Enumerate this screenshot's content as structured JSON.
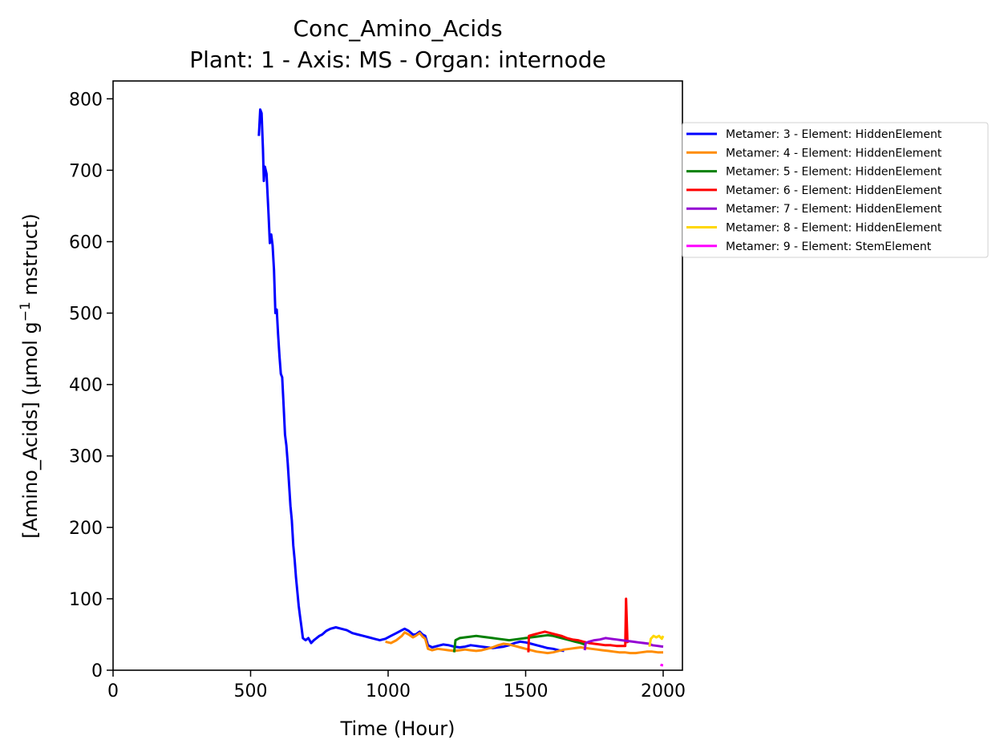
{
  "chart_data": {
    "type": "line",
    "title": "Conc_Amino_Acids",
    "subtitle": "Plant: 1 - Axis: MS - Organ: internode",
    "xlabel": "Time (Hour)",
    "ylabel_main": "[Amino_Acids] (µmol g",
    "ylabel_sup": "−1",
    "ylabel_tail": " mstruct)",
    "xlim": [
      0,
      2070
    ],
    "ylim": [
      0,
      825
    ],
    "xticks": [
      0,
      500,
      1000,
      1500,
      2000
    ],
    "yticks": [
      0,
      100,
      200,
      300,
      400,
      500,
      600,
      700,
      800
    ],
    "grid": false,
    "legend_position": "outside-right",
    "series": [
      {
        "name": "Metamer: 3 - Element: HiddenElement",
        "color": "#0000ff",
        "points": [
          [
            530,
            748
          ],
          [
            535,
            785
          ],
          [
            540,
            780
          ],
          [
            545,
            730
          ],
          [
            548,
            685
          ],
          [
            552,
            705
          ],
          [
            558,
            695
          ],
          [
            565,
            640
          ],
          [
            570,
            598
          ],
          [
            575,
            610
          ],
          [
            580,
            595
          ],
          [
            585,
            560
          ],
          [
            590,
            500
          ],
          [
            595,
            505
          ],
          [
            600,
            470
          ],
          [
            605,
            440
          ],
          [
            610,
            415
          ],
          [
            615,
            410
          ],
          [
            620,
            370
          ],
          [
            625,
            330
          ],
          [
            630,
            315
          ],
          [
            635,
            290
          ],
          [
            640,
            260
          ],
          [
            645,
            230
          ],
          [
            650,
            210
          ],
          [
            655,
            175
          ],
          [
            660,
            155
          ],
          [
            665,
            130
          ],
          [
            670,
            110
          ],
          [
            675,
            90
          ],
          [
            680,
            75
          ],
          [
            685,
            60
          ],
          [
            690,
            45
          ],
          [
            700,
            42
          ],
          [
            710,
            45
          ],
          [
            720,
            38
          ],
          [
            730,
            42
          ],
          [
            740,
            45
          ],
          [
            750,
            48
          ],
          [
            760,
            50
          ],
          [
            775,
            55
          ],
          [
            790,
            58
          ],
          [
            810,
            60
          ],
          [
            830,
            58
          ],
          [
            850,
            56
          ],
          [
            870,
            52
          ],
          [
            890,
            50
          ],
          [
            910,
            48
          ],
          [
            930,
            46
          ],
          [
            950,
            44
          ],
          [
            970,
            42
          ],
          [
            990,
            44
          ],
          [
            1010,
            48
          ],
          [
            1030,
            52
          ],
          [
            1050,
            56
          ],
          [
            1060,
            58
          ],
          [
            1075,
            55
          ],
          [
            1090,
            50
          ],
          [
            1100,
            50
          ],
          [
            1115,
            54
          ],
          [
            1125,
            50
          ],
          [
            1135,
            48
          ],
          [
            1145,
            35
          ],
          [
            1160,
            32
          ],
          [
            1180,
            34
          ],
          [
            1200,
            36
          ],
          [
            1220,
            35
          ],
          [
            1240,
            33
          ],
          [
            1260,
            32
          ],
          [
            1280,
            33
          ],
          [
            1300,
            35
          ],
          [
            1320,
            34
          ],
          [
            1340,
            33
          ],
          [
            1360,
            32
          ],
          [
            1380,
            31
          ],
          [
            1400,
            32
          ],
          [
            1420,
            33
          ],
          [
            1440,
            35
          ],
          [
            1460,
            38
          ],
          [
            1480,
            40
          ],
          [
            1500,
            39
          ],
          [
            1520,
            37
          ],
          [
            1540,
            35
          ],
          [
            1560,
            33
          ],
          [
            1580,
            31
          ],
          [
            1600,
            30
          ],
          [
            1620,
            28
          ],
          [
            1640,
            27
          ]
        ]
      },
      {
        "name": "Metamer: 4 - Element: HiddenElement",
        "color": "#ff8c00",
        "points": [
          [
            990,
            40
          ],
          [
            1010,
            38
          ],
          [
            1030,
            42
          ],
          [
            1050,
            48
          ],
          [
            1060,
            53
          ],
          [
            1075,
            50
          ],
          [
            1090,
            46
          ],
          [
            1100,
            48
          ],
          [
            1115,
            52
          ],
          [
            1125,
            47
          ],
          [
            1135,
            44
          ],
          [
            1145,
            30
          ],
          [
            1160,
            28
          ],
          [
            1180,
            30
          ],
          [
            1200,
            29
          ],
          [
            1220,
            28
          ],
          [
            1240,
            27
          ],
          [
            1260,
            28
          ],
          [
            1280,
            29
          ],
          [
            1300,
            28
          ],
          [
            1320,
            27
          ],
          [
            1340,
            28
          ],
          [
            1360,
            30
          ],
          [
            1380,
            32
          ],
          [
            1400,
            35
          ],
          [
            1420,
            37
          ],
          [
            1440,
            36
          ],
          [
            1460,
            34
          ],
          [
            1480,
            32
          ],
          [
            1500,
            30
          ],
          [
            1520,
            28
          ],
          [
            1540,
            26
          ],
          [
            1560,
            25
          ],
          [
            1580,
            24
          ],
          [
            1600,
            25
          ],
          [
            1620,
            27
          ],
          [
            1640,
            29
          ],
          [
            1660,
            30
          ],
          [
            1680,
            31
          ],
          [
            1700,
            32
          ],
          [
            1720,
            31
          ],
          [
            1740,
            30
          ],
          [
            1760,
            29
          ],
          [
            1780,
            28
          ],
          [
            1800,
            27
          ],
          [
            1820,
            26
          ],
          [
            1840,
            25
          ],
          [
            1860,
            25
          ],
          [
            1880,
            24
          ],
          [
            1900,
            24
          ],
          [
            1920,
            25
          ],
          [
            1940,
            26
          ],
          [
            1960,
            26
          ],
          [
            1980,
            25
          ],
          [
            2000,
            25
          ]
        ]
      },
      {
        "name": "Metamer: 5 - Element: HiddenElement",
        "color": "#008000",
        "points": [
          [
            1240,
            25
          ],
          [
            1245,
            42
          ],
          [
            1260,
            45
          ],
          [
            1280,
            46
          ],
          [
            1300,
            47
          ],
          [
            1320,
            48
          ],
          [
            1340,
            47
          ],
          [
            1360,
            46
          ],
          [
            1380,
            45
          ],
          [
            1400,
            44
          ],
          [
            1420,
            43
          ],
          [
            1440,
            42
          ],
          [
            1460,
            43
          ],
          [
            1480,
            44
          ],
          [
            1500,
            45
          ],
          [
            1520,
            46
          ],
          [
            1540,
            47
          ],
          [
            1560,
            48
          ],
          [
            1580,
            49
          ],
          [
            1600,
            48
          ],
          [
            1620,
            46
          ],
          [
            1640,
            44
          ],
          [
            1660,
            42
          ],
          [
            1680,
            40
          ],
          [
            1700,
            38
          ],
          [
            1715,
            36
          ]
        ]
      },
      {
        "name": "Metamer: 6 - Element: HiddenElement",
        "color": "#ff0000",
        "points": [
          [
            1510,
            25
          ],
          [
            1512,
            48
          ],
          [
            1530,
            50
          ],
          [
            1550,
            52
          ],
          [
            1570,
            54
          ],
          [
            1590,
            52
          ],
          [
            1610,
            50
          ],
          [
            1630,
            48
          ],
          [
            1650,
            45
          ],
          [
            1670,
            43
          ],
          [
            1690,
            42
          ],
          [
            1710,
            40
          ],
          [
            1730,
            38
          ],
          [
            1750,
            37
          ],
          [
            1770,
            36
          ],
          [
            1790,
            35
          ],
          [
            1810,
            35
          ],
          [
            1830,
            34
          ],
          [
            1850,
            34
          ],
          [
            1862,
            34
          ],
          [
            1865,
            100
          ],
          [
            1870,
            40
          ],
          [
            1872,
            38
          ]
        ]
      },
      {
        "name": "Metamer: 7 - Element: HiddenElement",
        "color": "#9400d3",
        "points": [
          [
            1715,
            28
          ],
          [
            1718,
            38
          ],
          [
            1730,
            40
          ],
          [
            1750,
            42
          ],
          [
            1770,
            43
          ],
          [
            1790,
            45
          ],
          [
            1810,
            44
          ],
          [
            1830,
            43
          ],
          [
            1850,
            42
          ],
          [
            1870,
            41
          ],
          [
            1890,
            40
          ],
          [
            1910,
            39
          ],
          [
            1930,
            38
          ],
          [
            1950,
            37
          ],
          [
            1960,
            35
          ],
          [
            1980,
            34
          ],
          [
            2000,
            33
          ]
        ]
      },
      {
        "name": "Metamer: 8 - Element: HiddenElement",
        "color": "#ffd700",
        "points": [
          [
            1950,
            33
          ],
          [
            1955,
            44
          ],
          [
            1965,
            48
          ],
          [
            1975,
            46
          ],
          [
            1985,
            48
          ],
          [
            1995,
            44
          ],
          [
            2000,
            48
          ]
        ]
      },
      {
        "name": "Metamer: 9 - Element: StemElement",
        "color": "#ff00ff",
        "points": [
          [
            1990,
            8
          ],
          [
            1995,
            7
          ],
          [
            2000,
            7
          ]
        ]
      }
    ]
  }
}
